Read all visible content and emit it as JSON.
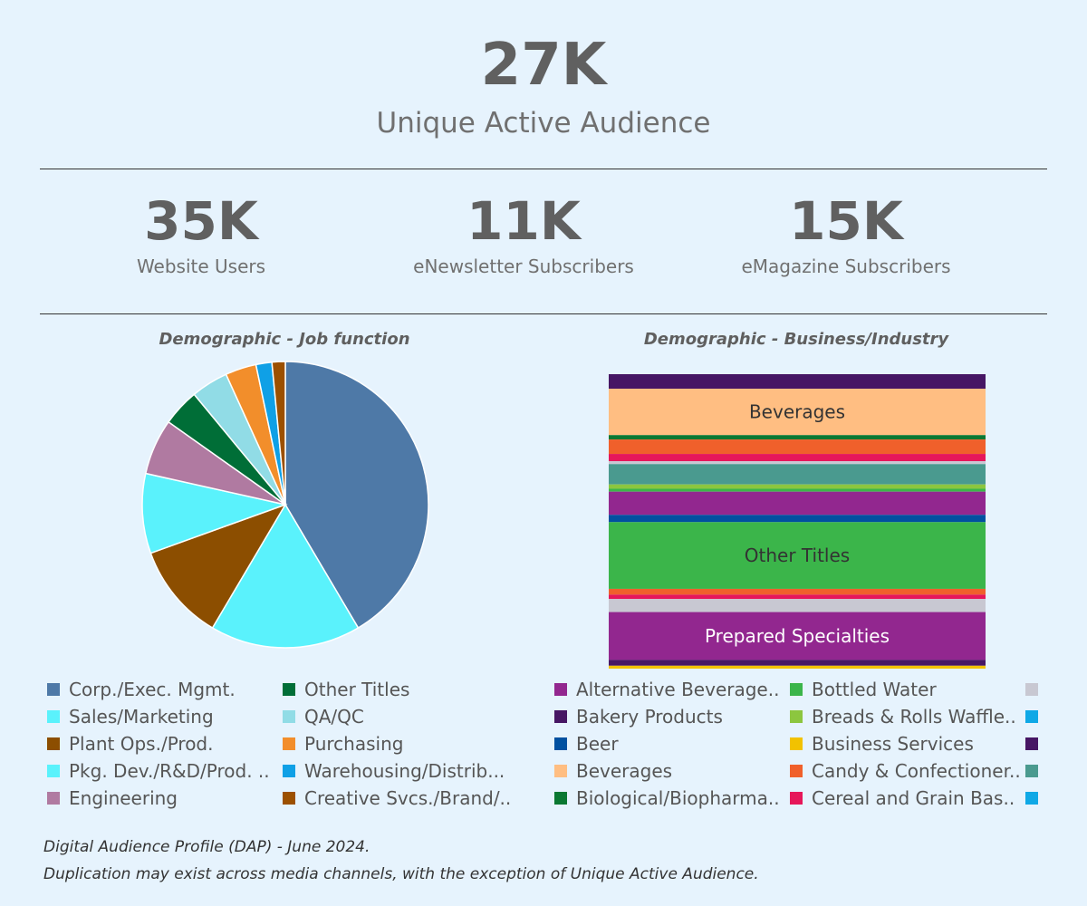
{
  "hero": {
    "value": "27K",
    "label": "Unique Active Audience"
  },
  "kpis": [
    {
      "value": "35K",
      "label": "Website Users"
    },
    {
      "value": "11K",
      "label": "eNewsletter Subscribers"
    },
    {
      "value": "15K",
      "label": "eMagazine Subscribers"
    }
  ],
  "footnote": {
    "line1": "Digital Audience Profile (DAP) - June 2024.",
    "line2": "Duplication may exist across media channels, with the exception of Unique Active Audience."
  },
  "chart_data": [
    {
      "type": "pie",
      "title": "Demographic - Job function",
      "slices": [
        {
          "label": "Corp./Exec. Mgmt.",
          "legend_text": "Corp./Exec. Mgmt.",
          "value": 41.5,
          "color": "#4e79a7"
        },
        {
          "label": "Sales/Marketing",
          "legend_text": "Sales/Marketing",
          "value": 17.0,
          "color": "#5af2fc"
        },
        {
          "label": "Plant Ops./Prod.",
          "legend_text": "Plant Ops./Prod.",
          "value": 11.0,
          "color": "#8c4e00"
        },
        {
          "label": "Pkg. Dev./R&D/Prod. ..",
          "legend_text": "Pkg. Dev./R&D/Prod. ..",
          "value": 9.0,
          "color": "#5af2fc"
        },
        {
          "label": "Engineering",
          "legend_text": "Engineering",
          "value": 6.3,
          "color": "#b07aa1"
        },
        {
          "label": "Other Titles",
          "legend_text": "Other Titles",
          "value": 4.2,
          "color": "#006e37"
        },
        {
          "label": "QA/QC",
          "legend_text": "QA/QC",
          "value": 4.2,
          "color": "#91dce6"
        },
        {
          "label": "Purchasing",
          "legend_text": "Purchasing",
          "value": 3.5,
          "color": "#f28e2b"
        },
        {
          "label": "Warehousing/Distrib...",
          "legend_text": "Warehousing/Distrib...",
          "value": 1.8,
          "color": "#0fa0e6"
        },
        {
          "label": "Creative Svcs./Brand/..",
          "legend_text": "Creative Svcs./Brand/..",
          "value": 1.5,
          "color": "#9c5000"
        }
      ]
    },
    {
      "type": "bar",
      "title": "Demographic - Business/Industry",
      "segments": [
        {
          "label": "",
          "value": 5,
          "color": "#461664"
        },
        {
          "label": "Beverages",
          "value": 16,
          "color": "#ffbe82"
        },
        {
          "label": "",
          "value": 1.5,
          "color": "#0a7832"
        },
        {
          "label": "",
          "value": 5,
          "color": "#f0602b"
        },
        {
          "label": "",
          "value": 2.5,
          "color": "#e6175a"
        },
        {
          "label": "",
          "value": 1,
          "color": "#c8c8d2"
        },
        {
          "label": "",
          "value": 7,
          "color": "#4a9a8f"
        },
        {
          "label": "",
          "value": 1.5,
          "color": "#8cc63f"
        },
        {
          "label": "",
          "value": 1,
          "color": "#3bb54a"
        },
        {
          "label": "",
          "value": 8,
          "color": "#92278f"
        },
        {
          "label": "",
          "value": 2.5,
          "color": "#0050a0"
        },
        {
          "label": "Other Titles",
          "value": 23,
          "color": "#3bb54a"
        },
        {
          "label": "",
          "value": 2,
          "color": "#f0602b"
        },
        {
          "label": "",
          "value": 1.5,
          "color": "#e6175a"
        },
        {
          "label": "",
          "value": 4.5,
          "color": "#c8c8d2"
        },
        {
          "label": "Prepared Specialties",
          "value": 16.5,
          "color": "#92278f"
        },
        {
          "label": "",
          "value": 2,
          "color": "#461664"
        },
        {
          "label": "",
          "value": 1,
          "color": "#f2c200"
        }
      ],
      "legend": [
        {
          "label": "Alternative Beverage..",
          "color": "#92278f"
        },
        {
          "label": "Bakery Products",
          "color": "#461664"
        },
        {
          "label": "Beer",
          "color": "#0050a0"
        },
        {
          "label": "Beverages",
          "color": "#ffbe82"
        },
        {
          "label": "Biological/Biopharma..",
          "color": "#0a7832"
        },
        {
          "label": "Bottled Water",
          "color": "#3bb54a"
        },
        {
          "label": "Breads & Rolls Waffle..",
          "color": "#8cc63f"
        },
        {
          "label": "Business Services",
          "color": "#f2c200"
        },
        {
          "label": "Candy & Confectioner..",
          "color": "#f0602b"
        },
        {
          "label": "Cereal and Grain Bas..",
          "color": "#e6175a"
        },
        {
          "label": "",
          "color": "#c8c8d2"
        },
        {
          "label": "",
          "color": "#0fa8e6"
        },
        {
          "label": "",
          "color": "#461664"
        },
        {
          "label": "",
          "color": "#4a9a8f"
        },
        {
          "label": "",
          "color": "#0fa8e6"
        }
      ]
    }
  ]
}
